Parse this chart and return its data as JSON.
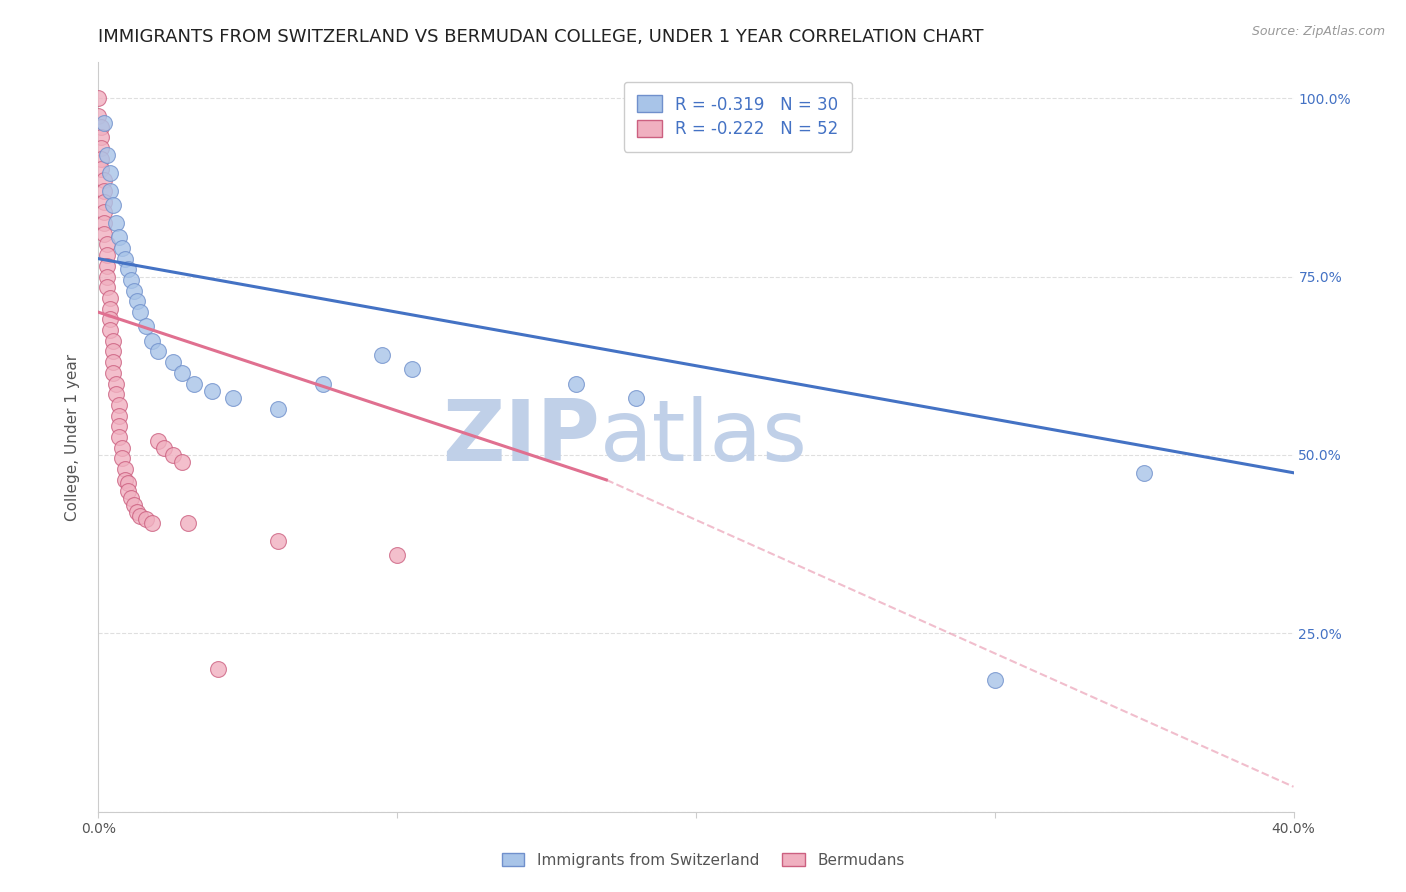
{
  "title": "IMMIGRANTS FROM SWITZERLAND VS BERMUDAN COLLEGE, UNDER 1 YEAR CORRELATION CHART",
  "source": "Source: ZipAtlas.com",
  "ylabel": "College, Under 1 year",
  "legend_r1": "R = -0.319   N = 30",
  "legend_r2": "R = -0.222   N = 52",
  "legend_label1": "Immigrants from Switzerland",
  "legend_label2": "Bermudans",
  "xlim": [
    0.0,
    0.4
  ],
  "ylim": [
    0.0,
    1.05
  ],
  "ytick_positions": [
    0.0,
    0.25,
    0.5,
    0.75,
    1.0
  ],
  "ytick_labels": [
    "",
    "25.0%",
    "50.0%",
    "75.0%",
    "100.0%"
  ],
  "swiss_x": [
    0.002,
    0.003,
    0.004,
    0.004,
    0.005,
    0.006,
    0.007,
    0.008,
    0.009,
    0.01,
    0.011,
    0.012,
    0.013,
    0.014,
    0.016,
    0.018,
    0.02,
    0.025,
    0.028,
    0.032,
    0.038,
    0.045,
    0.06,
    0.075,
    0.095,
    0.105,
    0.16,
    0.18,
    0.3,
    0.35
  ],
  "swiss_y": [
    0.965,
    0.92,
    0.895,
    0.87,
    0.85,
    0.825,
    0.805,
    0.79,
    0.775,
    0.76,
    0.745,
    0.73,
    0.715,
    0.7,
    0.68,
    0.66,
    0.645,
    0.63,
    0.615,
    0.6,
    0.59,
    0.58,
    0.565,
    0.6,
    0.64,
    0.62,
    0.6,
    0.58,
    0.185,
    0.475
  ],
  "bermuda_x": [
    0.0,
    0.0,
    0.001,
    0.001,
    0.001,
    0.001,
    0.001,
    0.002,
    0.002,
    0.002,
    0.002,
    0.002,
    0.002,
    0.003,
    0.003,
    0.003,
    0.003,
    0.003,
    0.004,
    0.004,
    0.004,
    0.004,
    0.005,
    0.005,
    0.005,
    0.005,
    0.006,
    0.006,
    0.007,
    0.007,
    0.007,
    0.007,
    0.008,
    0.008,
    0.009,
    0.009,
    0.01,
    0.01,
    0.011,
    0.012,
    0.013,
    0.014,
    0.016,
    0.018,
    0.02,
    0.022,
    0.025,
    0.028,
    0.03,
    0.04,
    0.06,
    0.1
  ],
  "bermuda_y": [
    1.0,
    0.975,
    0.96,
    0.945,
    0.93,
    0.915,
    0.9,
    0.885,
    0.87,
    0.855,
    0.84,
    0.825,
    0.81,
    0.795,
    0.78,
    0.765,
    0.75,
    0.735,
    0.72,
    0.705,
    0.69,
    0.675,
    0.66,
    0.645,
    0.63,
    0.615,
    0.6,
    0.585,
    0.57,
    0.555,
    0.54,
    0.525,
    0.51,
    0.495,
    0.48,
    0.465,
    0.46,
    0.45,
    0.44,
    0.43,
    0.42,
    0.415,
    0.41,
    0.405,
    0.52,
    0.51,
    0.5,
    0.49,
    0.405,
    0.2,
    0.38,
    0.36
  ],
  "swiss_color": "#a8c4e8",
  "bermuda_color": "#f0b0c0",
  "swiss_line_color": "#4472c4",
  "bermuda_line_color": "#e07090",
  "swiss_marker_edge": "#7090cc",
  "bermuda_marker_edge": "#cc6080",
  "background_color": "#ffffff",
  "grid_color": "#d8d8d8",
  "watermark_zip": "ZIP",
  "watermark_atlas": "atlas",
  "watermark_color": "#c0d0e8",
  "right_axis_color": "#4472c4",
  "title_fontsize": 13,
  "label_fontsize": 11,
  "tick_fontsize": 10,
  "swiss_trend_x0": 0.0,
  "swiss_trend_y0": 0.775,
  "swiss_trend_x1": 0.4,
  "swiss_trend_y1": 0.475,
  "bermuda_trend_x0": 0.0,
  "bermuda_trend_y0": 0.7,
  "bermuda_trend_x1_solid": 0.17,
  "bermuda_trend_y1_solid": 0.465,
  "bermuda_trend_x1_dash": 0.4,
  "bermuda_trend_y1_dash": 0.035
}
